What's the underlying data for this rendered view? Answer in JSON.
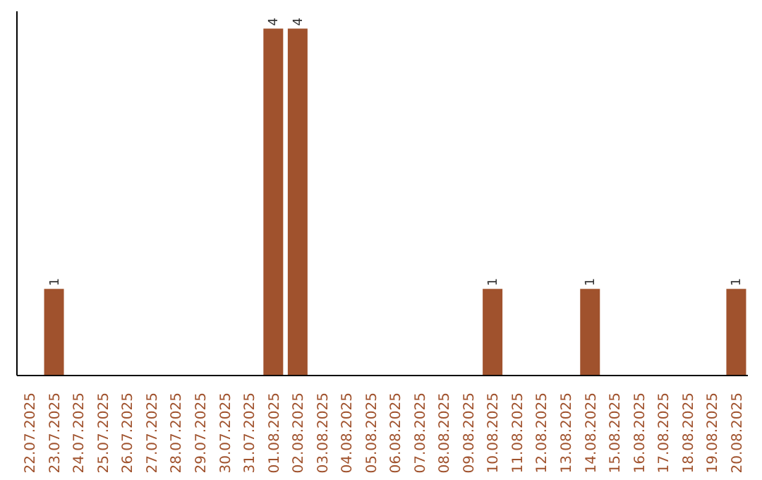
{
  "chart_data": {
    "type": "bar",
    "categories": [
      "22.07.2025",
      "23.07.2025",
      "24.07.2025",
      "25.07.2025",
      "26.07.2025",
      "27.07.2025",
      "28.07.2025",
      "29.07.2025",
      "30.07.2025",
      "31.07.2025",
      "01.08.2025",
      "02.08.2025",
      "03.08.2025",
      "04.08.2025",
      "05.08.2025",
      "06.08.2025",
      "07.08.2025",
      "08.08.2025",
      "09.08.2025",
      "10.08.2025",
      "11.08.2025",
      "12.08.2025",
      "13.08.2025",
      "14.08.2025",
      "15.08.2025",
      "16.08.2025",
      "17.08.2025",
      "18.08.2025",
      "19.08.2025",
      "20.08.2025"
    ],
    "values": [
      0,
      1,
      0,
      0,
      0,
      0,
      0,
      0,
      0,
      0,
      4,
      4,
      0,
      0,
      0,
      0,
      0,
      0,
      0,
      1,
      0,
      0,
      0,
      1,
      0,
      0,
      0,
      0,
      0,
      1
    ],
    "value_labels": [
      null,
      "1",
      null,
      null,
      null,
      null,
      null,
      null,
      null,
      null,
      "4",
      "4",
      null,
      null,
      null,
      null,
      null,
      null,
      null,
      "1",
      null,
      null,
      null,
      "1",
      null,
      null,
      null,
      null,
      null,
      "1"
    ],
    "color": "#a0522d",
    "ylim": [
      0,
      4.2
    ],
    "grid": false,
    "legend": false
  }
}
